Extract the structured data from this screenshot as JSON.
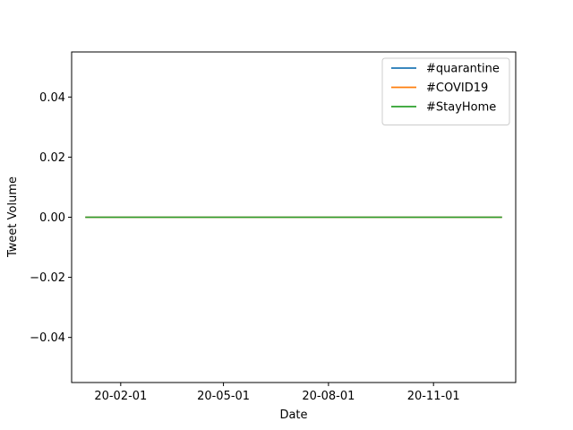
{
  "chart_data": {
    "type": "line",
    "title": "",
    "xlabel": "Date",
    "ylabel": "Tweet Volume",
    "x_range": [
      "2020-01-01",
      "2020-12-31"
    ],
    "xlim": [
      "2019-12-20",
      "2021-01-12"
    ],
    "ylim": [
      -0.055,
      0.055
    ],
    "x_ticks": [
      "2020-02-01",
      "2020-05-01",
      "2020-08-01",
      "2020-11-01"
    ],
    "x_tick_labels": [
      "20-02-01",
      "20-05-01",
      "20-08-01",
      "20-11-01"
    ],
    "y_ticks": [
      -0.04,
      -0.02,
      0.0,
      0.02,
      0.04
    ],
    "y_tick_labels": [
      "−0.04",
      "−0.02",
      "0.00",
      "0.02",
      "0.04"
    ],
    "grid": false,
    "legend_position": "top-right",
    "series": [
      {
        "name": "#quarantine",
        "color": "#1f77b4",
        "x": [
          "2020-01-01",
          "2020-12-31"
        ],
        "y": [
          0,
          0
        ]
      },
      {
        "name": "#COVID19",
        "color": "#ff7f0e",
        "x": [
          "2020-01-01",
          "2020-12-31"
        ],
        "y": [
          0,
          0
        ]
      },
      {
        "name": "#StayHome",
        "color": "#2ca02c",
        "x": [
          "2020-01-01",
          "2020-12-31"
        ],
        "y": [
          0,
          0
        ]
      }
    ]
  }
}
